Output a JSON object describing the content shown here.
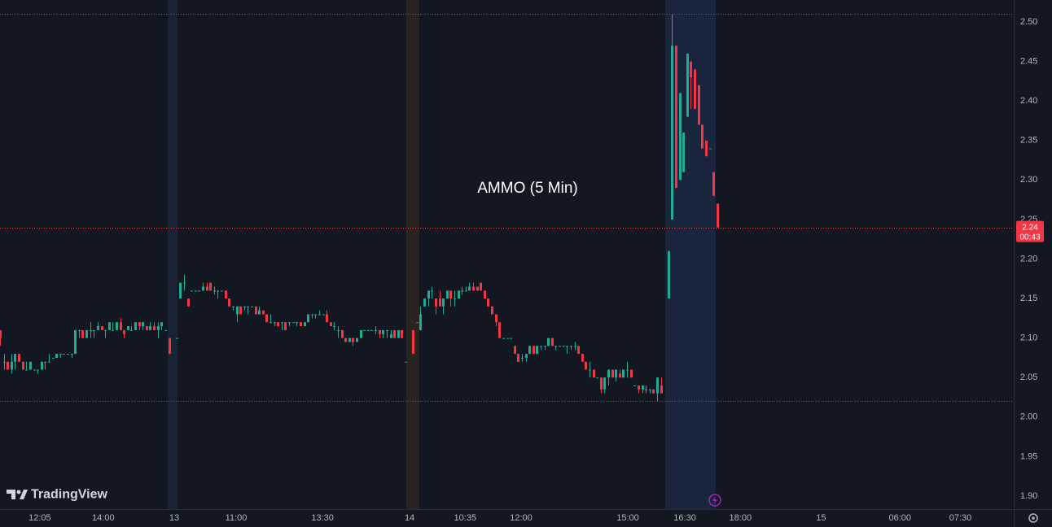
{
  "chart_data": {
    "type": "candlestick",
    "annotation": "AMMO (5 Min)",
    "brand": "TradingView",
    "up_color": "#22ab94",
    "down_color": "#f23645",
    "xlim": [
      0,
      270
    ],
    "ylim": [
      1.8835,
      2.5278
    ],
    "yticks": [
      {
        "value": 1.9,
        "label": "1.90"
      },
      {
        "value": 1.95,
        "label": "1.95"
      },
      {
        "value": 2.0,
        "label": "2.00"
      },
      {
        "value": 2.05,
        "label": "2.05"
      },
      {
        "value": 2.1,
        "label": "2.10"
      },
      {
        "value": 2.15,
        "label": "2.15"
      },
      {
        "value": 2.2,
        "label": "2.20"
      },
      {
        "value": 2.25,
        "label": "2.25"
      },
      {
        "value": 2.3,
        "label": "2.30"
      },
      {
        "value": 2.35,
        "label": "2.35"
      },
      {
        "value": 2.4,
        "label": "2.40"
      },
      {
        "value": 2.45,
        "label": "2.45"
      },
      {
        "value": 2.5,
        "label": "2.50"
      }
    ],
    "xticks": [
      {
        "value": 10.6,
        "label": "12:05"
      },
      {
        "value": 27.5,
        "label": "14:00"
      },
      {
        "value": 46.4,
        "label": "13"
      },
      {
        "value": 62.9,
        "label": "11:00"
      },
      {
        "value": 85.9,
        "label": "13:30"
      },
      {
        "value": 109.1,
        "label": "14"
      },
      {
        "value": 123.9,
        "label": "10:35"
      },
      {
        "value": 138.8,
        "label": "12:00"
      },
      {
        "value": 167.2,
        "label": "15:00"
      },
      {
        "value": 182.4,
        "label": "16:30"
      },
      {
        "value": 197.2,
        "label": "18:00"
      },
      {
        "value": 218.7,
        "label": "15"
      },
      {
        "value": 239.7,
        "label": "06:00"
      },
      {
        "value": 255.8,
        "label": "07:30"
      }
    ],
    "price_lines": [
      {
        "value": 2.51,
        "color": "#5d606b"
      },
      {
        "value": 2.02,
        "color": "#5d606b"
      },
      {
        "value": 2.24,
        "color": "#f23645"
      }
    ],
    "last_price": {
      "value": 2.24,
      "label": "2.24"
    },
    "countdown": "00:43",
    "x": [
      0,
      1,
      2,
      3,
      4,
      5,
      6,
      7,
      8,
      9,
      10,
      11,
      12,
      13,
      14,
      15,
      16,
      17,
      18,
      19,
      20,
      21,
      22,
      23,
      24,
      25,
      26,
      27,
      28,
      29,
      30,
      31,
      32,
      33,
      34,
      35,
      36,
      37,
      38,
      39,
      40,
      41,
      42,
      43,
      44,
      45,
      47,
      48,
      49,
      50,
      51,
      52,
      53,
      54,
      55,
      56,
      57,
      58,
      59,
      60,
      61,
      62,
      63,
      64,
      65,
      66,
      67,
      68,
      69,
      70,
      71,
      72,
      73,
      74,
      75,
      76,
      77,
      78,
      79,
      80,
      81,
      82,
      83,
      84,
      85,
      86,
      87,
      88,
      89,
      90,
      91,
      92,
      93,
      94,
      95,
      96,
      97,
      98,
      99,
      100,
      101,
      102,
      103,
      104,
      105,
      106,
      107,
      108,
      110,
      111,
      112,
      113,
      114,
      115,
      116,
      117,
      118,
      119,
      120,
      121,
      122,
      123,
      124,
      125,
      126,
      127,
      128,
      129,
      130,
      131,
      132,
      133,
      134,
      135,
      136,
      137,
      138,
      139,
      140,
      141,
      142,
      143,
      144,
      145,
      146,
      147,
      148,
      149,
      150,
      151,
      152,
      153,
      154,
      155,
      156,
      157,
      158,
      159,
      160,
      161,
      162,
      163,
      164,
      165,
      166,
      167,
      168,
      169,
      170,
      171,
      172,
      173,
      174,
      175,
      176,
      178,
      179,
      180,
      181,
      182,
      183,
      184,
      185,
      186,
      187,
      188,
      189,
      190,
      191
    ],
    "open": [
      2.11,
      2.07,
      2.07,
      2.06,
      2.07,
      2.08,
      2.07,
      2.06,
      2.06,
      2.06,
      2.06,
      2.06,
      2.07,
      2.07,
      2.075,
      2.075,
      2.08,
      2.08,
      2.08,
      2.08,
      2.08,
      2.11,
      2.11,
      2.1,
      2.11,
      2.11,
      2.11,
      2.115,
      2.11,
      2.11,
      2.11,
      2.11,
      2.12,
      2.11,
      2.11,
      2.11,
      2.11,
      2.12,
      2.115,
      2.115,
      2.11,
      2.115,
      2.11,
      2.115,
      2.11,
      2.1,
      2.1,
      2.15,
      2.17,
      2.15,
      2.16,
      2.16,
      2.16,
      2.16,
      2.165,
      2.17,
      2.16,
      2.16,
      2.16,
      2.16,
      2.15,
      2.14,
      2.13,
      2.14,
      2.14,
      2.14,
      2.14,
      2.14,
      2.13,
      2.135,
      2.13,
      2.12,
      2.12,
      2.12,
      2.12,
      2.12,
      2.12,
      2.12,
      2.12,
      2.12,
      2.115,
      2.12,
      2.13,
      2.13,
      2.13,
      2.13,
      2.13,
      2.12,
      2.115,
      2.11,
      2.11,
      2.1,
      2.095,
      2.1,
      2.095,
      2.1,
      2.11,
      2.11,
      2.11,
      2.11,
      2.11,
      2.105,
      2.11,
      2.1,
      2.11,
      2.1,
      2.11,
      2.07,
      2.11,
      2.12,
      2.11,
      2.14,
      2.15,
      2.16,
      2.15,
      2.15,
      2.14,
      2.15,
      2.16,
      2.15,
      2.15,
      2.16,
      2.16,
      2.16,
      2.165,
      2.165,
      2.17,
      2.16,
      2.15,
      2.14,
      2.13,
      2.12,
      2.1,
      2.1,
      2.1,
      2.09,
      2.08,
      2.075,
      2.075,
      2.08,
      2.09,
      2.08,
      2.09,
      2.09,
      2.09,
      2.1,
      2.09,
      2.09,
      2.09,
      2.09,
      2.09,
      2.09,
      2.09,
      2.08,
      2.07,
      2.06,
      2.06,
      2.05,
      2.05,
      2.035,
      2.05,
      2.06,
      2.05,
      2.055,
      2.05,
      2.06,
      2.06,
      2.04,
      2.04,
      2.035,
      2.035,
      2.035,
      2.035,
      2.03,
      2.04,
      2.15,
      2.25,
      2.47,
      2.3,
      2.31,
      2.38,
      2.45,
      2.44,
      2.42,
      2.37,
      2.35,
      2.34,
      2.31,
      2.27
    ],
    "high": [
      2.11,
      2.08,
      2.07,
      2.08,
      2.08,
      2.08,
      2.07,
      2.07,
      2.07,
      2.06,
      2.06,
      2.07,
      2.07,
      2.08,
      2.075,
      2.08,
      2.08,
      2.08,
      2.08,
      2.08,
      2.11,
      2.11,
      2.11,
      2.11,
      2.12,
      2.11,
      2.12,
      2.115,
      2.11,
      2.12,
      2.12,
      2.12,
      2.125,
      2.11,
      2.115,
      2.115,
      2.12,
      2.12,
      2.12,
      2.115,
      2.12,
      2.12,
      2.12,
      2.12,
      2.11,
      2.1,
      2.1,
      2.17,
      2.18,
      2.15,
      2.16,
      2.16,
      2.16,
      2.17,
      2.17,
      2.17,
      2.165,
      2.16,
      2.16,
      2.16,
      2.15,
      2.14,
      2.14,
      2.14,
      2.14,
      2.14,
      2.14,
      2.14,
      2.14,
      2.135,
      2.13,
      2.13,
      2.12,
      2.12,
      2.12,
      2.12,
      2.12,
      2.12,
      2.12,
      2.12,
      2.12,
      2.13,
      2.13,
      2.13,
      2.135,
      2.13,
      2.135,
      2.12,
      2.12,
      2.115,
      2.11,
      2.1,
      2.1,
      2.1,
      2.1,
      2.11,
      2.11,
      2.11,
      2.11,
      2.115,
      2.11,
      2.11,
      2.11,
      2.11,
      2.11,
      2.11,
      2.11,
      2.07,
      2.11,
      2.12,
      2.14,
      2.15,
      2.16,
      2.165,
      2.15,
      2.16,
      2.15,
      2.16,
      2.16,
      2.16,
      2.16,
      2.165,
      2.165,
      2.17,
      2.17,
      2.165,
      2.17,
      2.16,
      2.15,
      2.14,
      2.13,
      2.12,
      2.1,
      2.1,
      2.1,
      2.09,
      2.08,
      2.08,
      2.08,
      2.09,
      2.09,
      2.09,
      2.09,
      2.09,
      2.1,
      2.1,
      2.09,
      2.09,
      2.09,
      2.09,
      2.09,
      2.095,
      2.09,
      2.08,
      2.07,
      2.07,
      2.06,
      2.05,
      2.05,
      2.05,
      2.06,
      2.06,
      2.06,
      2.06,
      2.06,
      2.07,
      2.06,
      2.04,
      2.04,
      2.04,
      2.04,
      2.035,
      2.035,
      2.05,
      2.05,
      2.21,
      2.51,
      2.47,
      2.41,
      2.36,
      2.46,
      2.45,
      2.44,
      2.42,
      2.37,
      2.35,
      2.34,
      2.31,
      2.27
    ],
    "low": [
      2.09,
      2.06,
      2.06,
      2.055,
      2.06,
      2.07,
      2.06,
      2.06,
      2.06,
      2.06,
      2.055,
      2.06,
      2.06,
      2.07,
      2.075,
      2.075,
      2.075,
      2.08,
      2.08,
      2.075,
      2.08,
      2.1,
      2.1,
      2.1,
      2.1,
      2.1,
      2.11,
      2.11,
      2.1,
      2.11,
      2.11,
      2.11,
      2.11,
      2.1,
      2.11,
      2.11,
      2.11,
      2.11,
      2.11,
      2.11,
      2.11,
      2.11,
      2.1,
      2.11,
      2.11,
      2.08,
      2.1,
      2.15,
      2.16,
      2.14,
      2.16,
      2.16,
      2.16,
      2.16,
      2.16,
      2.16,
      2.155,
      2.15,
      2.16,
      2.15,
      2.14,
      2.135,
      2.12,
      2.13,
      2.135,
      2.13,
      2.14,
      2.13,
      2.13,
      2.13,
      2.12,
      2.12,
      2.115,
      2.115,
      2.11,
      2.11,
      2.115,
      2.12,
      2.115,
      2.115,
      2.115,
      2.12,
      2.125,
      2.125,
      2.13,
      2.13,
      2.12,
      2.115,
      2.11,
      2.1,
      2.1,
      2.095,
      2.095,
      2.09,
      2.095,
      2.1,
      2.11,
      2.11,
      2.11,
      2.105,
      2.1,
      2.1,
      2.1,
      2.1,
      2.1,
      2.1,
      2.1,
      2.07,
      2.08,
      2.12,
      2.11,
      2.14,
      2.14,
      2.15,
      2.13,
      2.14,
      2.13,
      2.15,
      2.14,
      2.14,
      2.15,
      2.155,
      2.16,
      2.16,
      2.16,
      2.16,
      2.16,
      2.15,
      2.14,
      2.13,
      2.115,
      2.1,
      2.1,
      2.1,
      2.1,
      2.08,
      2.07,
      2.07,
      2.07,
      2.08,
      2.08,
      2.08,
      2.085,
      2.085,
      2.09,
      2.09,
      2.085,
      2.09,
      2.09,
      2.08,
      2.085,
      2.085,
      2.08,
      2.07,
      2.06,
      2.05,
      2.05,
      2.05,
      2.03,
      2.03,
      2.04,
      2.05,
      2.045,
      2.05,
      2.05,
      2.05,
      2.05,
      2.04,
      2.03,
      2.03,
      2.03,
      2.03,
      2.03,
      2.02,
      2.03,
      2.15,
      2.25,
      2.29,
      2.3,
      2.31,
      2.38,
      2.39,
      2.39,
      2.37,
      2.34,
      2.33,
      2.34,
      2.28,
      2.24
    ],
    "close": [
      2.1,
      2.07,
      2.06,
      2.07,
      2.08,
      2.07,
      2.06,
      2.06,
      2.07,
      2.06,
      2.06,
      2.07,
      2.07,
      2.07,
      2.075,
      2.08,
      2.08,
      2.08,
      2.08,
      2.08,
      2.11,
      2.11,
      2.1,
      2.11,
      2.11,
      2.11,
      2.115,
      2.11,
      2.11,
      2.12,
      2.11,
      2.12,
      2.11,
      2.105,
      2.115,
      2.11,
      2.12,
      2.115,
      2.12,
      2.11,
      2.115,
      2.11,
      2.115,
      2.12,
      2.11,
      2.08,
      2.1,
      2.17,
      2.17,
      2.14,
      2.16,
      2.16,
      2.16,
      2.165,
      2.16,
      2.16,
      2.16,
      2.16,
      2.16,
      2.15,
      2.14,
      2.14,
      2.14,
      2.13,
      2.14,
      2.14,
      2.14,
      2.13,
      2.135,
      2.13,
      2.12,
      2.12,
      2.12,
      2.115,
      2.12,
      2.11,
      2.12,
      2.12,
      2.12,
      2.115,
      2.12,
      2.13,
      2.13,
      2.13,
      2.13,
      2.13,
      2.12,
      2.115,
      2.115,
      2.11,
      2.1,
      2.095,
      2.1,
      2.095,
      2.1,
      2.11,
      2.11,
      2.11,
      2.11,
      2.11,
      2.105,
      2.11,
      2.11,
      2.105,
      2.1,
      2.11,
      2.1,
      2.07,
      2.08,
      2.12,
      2.13,
      2.15,
      2.16,
      2.16,
      2.14,
      2.14,
      2.15,
      2.16,
      2.15,
      2.15,
      2.16,
      2.16,
      2.16,
      2.165,
      2.16,
      2.16,
      2.16,
      2.15,
      2.14,
      2.13,
      2.12,
      2.1,
      2.1,
      2.1,
      2.1,
      2.08,
      2.07,
      2.075,
      2.08,
      2.09,
      2.08,
      2.09,
      2.09,
      2.09,
      2.1,
      2.09,
      2.09,
      2.09,
      2.09,
      2.09,
      2.09,
      2.09,
      2.08,
      2.07,
      2.06,
      2.06,
      2.05,
      2.05,
      2.035,
      2.05,
      2.06,
      2.05,
      2.06,
      2.05,
      2.06,
      2.06,
      2.05,
      2.04,
      2.035,
      2.04,
      2.035,
      2.035,
      2.03,
      2.05,
      2.03,
      2.21,
      2.47,
      2.29,
      2.41,
      2.36,
      2.46,
      2.43,
      2.39,
      2.37,
      2.34,
      2.33,
      2.34,
      2.28,
      2.24
    ]
  }
}
